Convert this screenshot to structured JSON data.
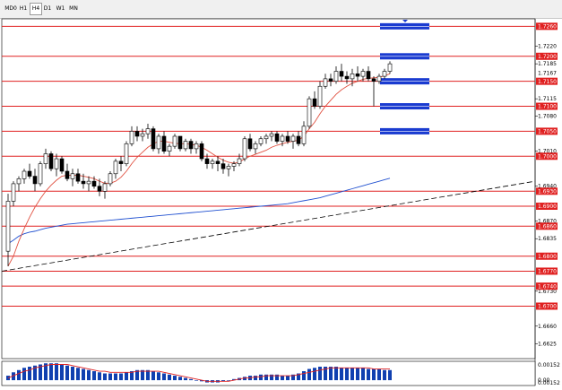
{
  "timeframes": {
    "items": [
      "MD0",
      "H1",
      "H4",
      "D1",
      "W1",
      "MN"
    ],
    "active": "H4"
  },
  "colors": {
    "level_line": "#e02020",
    "level_label_bg": "#e02020",
    "sma_fast": "#e05040",
    "sma_slow": "#2050d0",
    "trendline": "#000000",
    "zone_fill": "#1a3bd0",
    "macd_hist": "#1040b0",
    "macd_signal": "#e02020",
    "candle": "#000000"
  },
  "chart_data": {
    "type": "candlestick",
    "symbol_period": "H4",
    "price_axis": {
      "ylim": [
        1.6595,
        1.7275
      ],
      "ticks": [
        "1.7220",
        "1.7185",
        "1.7115",
        "1.7080",
        "1.7010",
        "1.6940",
        "1.6870",
        "1.6835",
        "1.6730",
        "1.6660",
        "1.6625"
      ]
    },
    "levels": [
      {
        "price": 1.726,
        "label": "1.7260"
      },
      {
        "price": 1.72,
        "label": "1.7200"
      },
      {
        "price": 1.715,
        "label": "1.7150"
      },
      {
        "price": 1.71,
        "label": "1.7100"
      },
      {
        "price": 1.705,
        "label": "1.7050"
      },
      {
        "price": 1.7,
        "label": "1.7000"
      },
      {
        "price": 1.693,
        "label": "1.6930"
      },
      {
        "price": 1.69,
        "label": "1.6900"
      },
      {
        "price": 1.686,
        "label": "1.6860"
      },
      {
        "price": 1.68,
        "label": "1.6800"
      },
      {
        "price": 1.677,
        "label": "1.6770"
      },
      {
        "price": 1.674,
        "label": "1.6740"
      },
      {
        "price": 1.67,
        "label": "1.6700"
      }
    ],
    "current_price": {
      "price": 1.7167,
      "label": "1.7167"
    },
    "zones": [
      1.726,
      1.72,
      1.715,
      1.71,
      1.705
    ],
    "candles": [
      [
        1.681,
        1.6925,
        1.678,
        1.691
      ],
      [
        1.691,
        1.695,
        1.69,
        1.6945
      ],
      [
        1.6945,
        1.696,
        1.693,
        1.6955
      ],
      [
        1.6955,
        1.6975,
        1.6945,
        1.697
      ],
      [
        1.697,
        1.6985,
        1.6955,
        1.696
      ],
      [
        1.696,
        1.6975,
        1.693,
        1.6945
      ],
      [
        1.6945,
        1.699,
        1.694,
        1.6985
      ],
      [
        1.6985,
        1.7015,
        1.6975,
        1.7005
      ],
      [
        1.7005,
        1.701,
        1.697,
        1.6975
      ],
      [
        1.6975,
        1.7005,
        1.696,
        1.6995
      ],
      [
        1.6995,
        1.7,
        1.6965,
        1.697
      ],
      [
        1.697,
        1.6985,
        1.695,
        1.6955
      ],
      [
        1.6955,
        1.6975,
        1.694,
        1.6965
      ],
      [
        1.6965,
        1.6975,
        1.6945,
        1.695
      ],
      [
        1.695,
        1.6965,
        1.6935,
        1.6945
      ],
      [
        1.6945,
        1.696,
        1.693,
        1.695
      ],
      [
        1.695,
        1.696,
        1.6935,
        1.694
      ],
      [
        1.694,
        1.6955,
        1.692,
        1.693
      ],
      [
        1.693,
        1.695,
        1.6915,
        1.6945
      ],
      [
        1.6945,
        1.697,
        1.694,
        1.6965
      ],
      [
        1.6965,
        1.6995,
        1.6955,
        1.699
      ],
      [
        1.699,
        1.7,
        1.697,
        1.6985
      ],
      [
        1.6985,
        1.703,
        1.698,
        1.7025
      ],
      [
        1.7025,
        1.706,
        1.702,
        1.705
      ],
      [
        1.705,
        1.706,
        1.703,
        1.704
      ],
      [
        1.704,
        1.7055,
        1.703,
        1.7045
      ],
      [
        1.7045,
        1.7065,
        1.7035,
        1.7055
      ],
      [
        1.7055,
        1.706,
        1.701,
        1.7015
      ],
      [
        1.7015,
        1.7045,
        1.7005,
        1.704
      ],
      [
        1.704,
        1.705,
        1.7005,
        1.701
      ],
      [
        1.701,
        1.7025,
        1.7,
        1.702
      ],
      [
        1.702,
        1.7045,
        1.7015,
        1.704
      ],
      [
        1.704,
        1.704,
        1.701,
        1.7015
      ],
      [
        1.7015,
        1.7035,
        1.701,
        1.703
      ],
      [
        1.703,
        1.7035,
        1.7005,
        1.7015
      ],
      [
        1.7015,
        1.703,
        1.7005,
        1.7025
      ],
      [
        1.7025,
        1.703,
        1.699,
        1.6995
      ],
      [
        1.6995,
        1.7005,
        1.6975,
        1.6985
      ],
      [
        1.6985,
        1.6995,
        1.6975,
        1.699
      ],
      [
        1.699,
        1.7,
        1.697,
        1.6985
      ],
      [
        1.6985,
        1.6995,
        1.6965,
        1.6975
      ],
      [
        1.6975,
        1.6985,
        1.696,
        1.698
      ],
      [
        1.698,
        1.699,
        1.697,
        1.6985
      ],
      [
        1.6985,
        1.7005,
        1.698,
        1.6995
      ],
      [
        1.6995,
        1.704,
        1.699,
        1.7035
      ],
      [
        1.7035,
        1.7045,
        1.701,
        1.7015
      ],
      [
        1.7015,
        1.703,
        1.7005,
        1.7025
      ],
      [
        1.7025,
        1.704,
        1.702,
        1.7035
      ],
      [
        1.7035,
        1.7045,
        1.7025,
        1.704
      ],
      [
        1.704,
        1.705,
        1.703,
        1.7045
      ],
      [
        1.7045,
        1.705,
        1.7025,
        1.703
      ],
      [
        1.703,
        1.7045,
        1.702,
        1.704
      ],
      [
        1.704,
        1.705,
        1.7025,
        1.703
      ],
      [
        1.703,
        1.7045,
        1.7015,
        1.704
      ],
      [
        1.704,
        1.705,
        1.702,
        1.7025
      ],
      [
        1.7025,
        1.707,
        1.702,
        1.706
      ],
      [
        1.706,
        1.712,
        1.7055,
        1.7115
      ],
      [
        1.7115,
        1.713,
        1.7095,
        1.71
      ],
      [
        1.71,
        1.715,
        1.7095,
        1.714
      ],
      [
        1.714,
        1.7165,
        1.7135,
        1.7155
      ],
      [
        1.7155,
        1.7165,
        1.714,
        1.715
      ],
      [
        1.715,
        1.718,
        1.7145,
        1.717
      ],
      [
        1.717,
        1.7185,
        1.715,
        1.716
      ],
      [
        1.716,
        1.717,
        1.7145,
        1.7155
      ],
      [
        1.7155,
        1.7175,
        1.714,
        1.7165
      ],
      [
        1.7165,
        1.718,
        1.715,
        1.716
      ],
      [
        1.716,
        1.7175,
        1.715,
        1.717
      ],
      [
        1.717,
        1.718,
        1.715,
        1.7155
      ],
      [
        1.7155,
        1.716,
        1.71,
        1.715
      ],
      [
        1.715,
        1.7165,
        1.7145,
        1.716
      ],
      [
        1.716,
        1.7175,
        1.7155,
        1.717
      ],
      [
        1.717,
        1.719,
        1.7165,
        1.7185
      ]
    ],
    "sma_fast": [
      1.678,
      1.68,
      1.683,
      1.6855,
      1.6878,
      1.6898,
      1.6915,
      1.693,
      1.6942,
      1.6952,
      1.696,
      1.6962,
      1.6962,
      1.6962,
      1.696,
      1.6958,
      1.6955,
      1.695,
      1.6946,
      1.6946,
      1.695,
      1.6958,
      1.697,
      1.6985,
      1.6998,
      1.7008,
      1.7018,
      1.7025,
      1.703,
      1.703,
      1.7028,
      1.7026,
      1.7025,
      1.7025,
      1.7024,
      1.7022,
      1.7018,
      1.7012,
      1.7005,
      1.6998,
      1.6992,
      1.6988,
      1.6986,
      1.6988,
      1.6995,
      1.7,
      1.7004,
      1.7008,
      1.7012,
      1.7018,
      1.7022,
      1.7025,
      1.7028,
      1.703,
      1.7032,
      1.704,
      1.7055,
      1.7068,
      1.7085,
      1.71,
      1.7112,
      1.7124,
      1.7133,
      1.714,
      1.7146,
      1.715,
      1.7154,
      1.7156,
      1.7157,
      1.7158,
      1.7161,
      1.7165
    ],
    "sma_slow": [
      1.6825,
      1.6832,
      1.684,
      1.6845,
      1.6848,
      1.685,
      1.6853,
      1.6856,
      1.6858,
      1.686,
      1.6862,
      1.6864,
      1.6865,
      1.6866,
      1.6867,
      1.6868,
      1.6869,
      1.687,
      1.6871,
      1.6872,
      1.6873,
      1.6874,
      1.6875,
      1.6876,
      1.6877,
      1.6878,
      1.6879,
      1.688,
      1.6881,
      1.6882,
      1.6883,
      1.6884,
      1.6885,
      1.6886,
      1.6887,
      1.6888,
      1.6889,
      1.689,
      1.6891,
      1.6892,
      1.6893,
      1.6894,
      1.6895,
      1.6896,
      1.6897,
      1.6898,
      1.6899,
      1.69,
      1.6901,
      1.6902,
      1.6903,
      1.6904,
      1.6905,
      1.6907,
      1.6909,
      1.6911,
      1.6913,
      1.6915,
      1.6917,
      1.692,
      1.6923,
      1.6926,
      1.6929,
      1.6932,
      1.6935,
      1.6938,
      1.6941,
      1.6944,
      1.6947,
      1.695,
      1.6953,
      1.6956
    ],
    "trendline": {
      "from": [
        0,
        1.677
      ],
      "to": [
        100,
        1.695
      ]
    },
    "macd": {
      "axis_labels": [
        "0.00152",
        "0.00",
        "0.00152"
      ],
      "histogram": [
        0.0004,
        0.0007,
        0.0009,
        0.0011,
        0.0012,
        0.0013,
        0.0014,
        0.0015,
        0.0015,
        0.0015,
        0.0014,
        0.0013,
        0.0012,
        0.0011,
        0.001,
        0.0009,
        0.0008,
        0.0007,
        0.0006,
        0.0006,
        0.0006,
        0.0006,
        0.0007,
        0.0008,
        0.0009,
        0.0009,
        0.0009,
        0.0008,
        0.0007,
        0.0006,
        0.0005,
        0.0004,
        0.0003,
        0.0002,
        0.0001,
        0.0,
        -0.0001,
        -0.0002,
        -0.0002,
        -0.0002,
        -0.0001,
        0.0,
        0.0001,
        0.0002,
        0.0003,
        0.0004,
        0.0004,
        0.0005,
        0.0005,
        0.0005,
        0.0005,
        0.0004,
        0.0004,
        0.0005,
        0.0006,
        0.0008,
        0.001,
        0.0011,
        0.0012,
        0.0012,
        0.0012,
        0.0012,
        0.0011,
        0.0011,
        0.0011,
        0.0011,
        0.0011,
        0.001,
        0.001,
        0.001,
        0.0009,
        0.0009
      ],
      "signal": [
        0.0002,
        0.0004,
        0.0006,
        0.0008,
        0.0009,
        0.0011,
        0.0012,
        0.0013,
        0.0014,
        0.0014,
        0.0014,
        0.0014,
        0.0013,
        0.0012,
        0.0011,
        0.001,
        0.0009,
        0.0008,
        0.0008,
        0.0007,
        0.0007,
        0.0007,
        0.0007,
        0.0007,
        0.0008,
        0.0008,
        0.0008,
        0.0008,
        0.0008,
        0.0007,
        0.0006,
        0.0005,
        0.0004,
        0.0003,
        0.0002,
        0.0001,
        0.0,
        -0.0001,
        -0.0001,
        -0.0001,
        -0.0001,
        -0.0001,
        0.0,
        0.0001,
        0.0002,
        0.0002,
        0.0003,
        0.0003,
        0.0004,
        0.0004,
        0.0004,
        0.0004,
        0.0004,
        0.0004,
        0.0005,
        0.0006,
        0.0007,
        0.0008,
        0.0009,
        0.001,
        0.0011,
        0.0011,
        0.0011,
        0.0011,
        0.0011,
        0.0011,
        0.0011,
        0.0011,
        0.001,
        0.001,
        0.001,
        0.001
      ]
    }
  }
}
